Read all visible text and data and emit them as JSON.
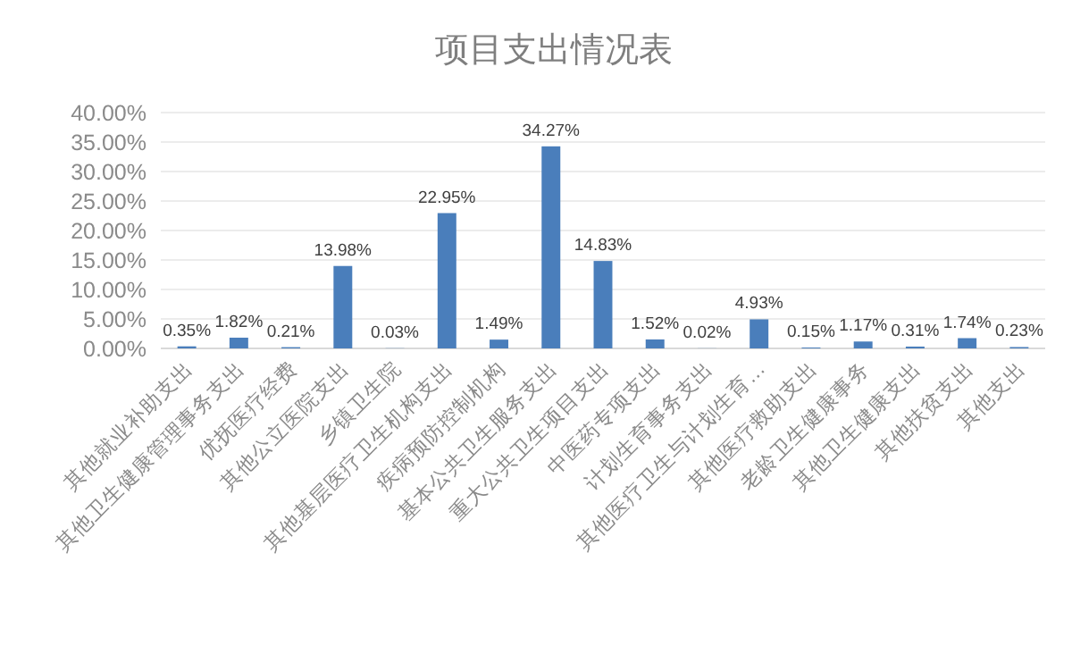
{
  "chart_data": {
    "type": "bar",
    "title": "项目支出情况表",
    "categories": [
      "其他就业补助支出",
      "其他卫生健康管理事务支出",
      "优抚医疗经费",
      "其他公立医院支出",
      "乡镇卫生院",
      "其他基层医疗卫生机构支出",
      "疾病预防控制机构",
      "基本公共卫生服务支出",
      "重大公共卫生项目支出",
      "中医药专项支出",
      "计划生育事务支出",
      "其他医疗卫生与计划生育…",
      "其他医疗救助支出",
      "老龄卫生健康事务",
      "其他卫生健康支出",
      "其他扶贫支出",
      "其他支出"
    ],
    "values": [
      0.35,
      1.82,
      0.21,
      13.98,
      0.03,
      22.95,
      1.49,
      34.27,
      14.83,
      1.52,
      0.02,
      4.93,
      0.15,
      1.17,
      0.31,
      1.74,
      0.23
    ],
    "value_labels": [
      "0.35%",
      "1.82%",
      "0.21%",
      "13.98%",
      "0.03%",
      "22.95%",
      "1.49%",
      "34.27%",
      "14.83%",
      "1.52%",
      "0.02%",
      "4.93%",
      "0.15%",
      "1.17%",
      "0.31%",
      "1.74%",
      "0.23%"
    ],
    "color": "#4a7ebb",
    "ylim": [
      0,
      40
    ],
    "yticks": [
      {
        "value": 0,
        "label": "0.00%"
      },
      {
        "value": 5,
        "label": "5.00%"
      },
      {
        "value": 10,
        "label": "10.00%"
      },
      {
        "value": 15,
        "label": "15.00%"
      },
      {
        "value": 20,
        "label": "20.00%"
      },
      {
        "value": 25,
        "label": "25.00%"
      },
      {
        "value": 30,
        "label": "30.00%"
      },
      {
        "value": 35,
        "label": "35.00%"
      },
      {
        "value": 40,
        "label": "40.00%"
      }
    ],
    "grid": "y"
  }
}
